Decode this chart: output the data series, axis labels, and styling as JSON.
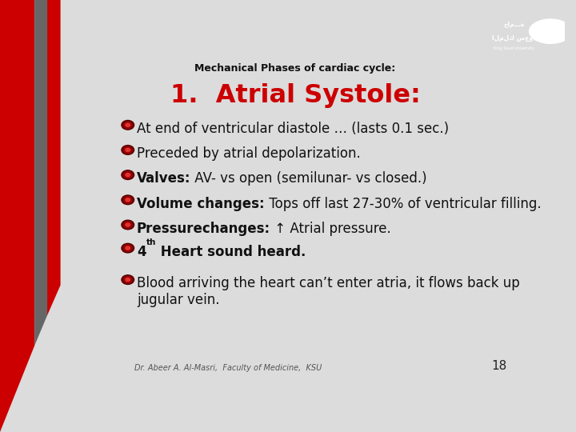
{
  "title_small": "Mechanical Phases of cardiac cycle:",
  "title_large": "1.  Atrial Systole:",
  "bullet_items": [
    {
      "bold_part": "",
      "normal_part": "At end of ventricular diastole … (lasts 0.1 sec.)"
    },
    {
      "bold_part": "",
      "normal_part": "Preceded by atrial depolarization."
    },
    {
      "bold_part": "Valves:",
      "normal_part": " AV- vs open (semilunar- vs closed.)"
    },
    {
      "bold_part": "Volume changes:",
      "normal_part": " Tops off last 27-30% of ventricular filling."
    },
    {
      "bold_part": "Pressurechanges:",
      "normal_part": " ↑ Atrial pressure."
    },
    {
      "bold_part": "4",
      "superscript": "th",
      "bold_part2": " Heart sound heard.",
      "normal_part": ""
    },
    {
      "bold_part": "",
      "normal_part": "Blood arriving the heart can’t enter atria, it flows back up\njugular vein."
    }
  ],
  "footer": "Dr. Abeer A. Al-Masri,  Faculty of Medicine,  KSU",
  "page_number": "18",
  "bg_color": "#dcdcdc",
  "title_large_color": "#cc0000",
  "title_small_color": "#111111",
  "text_color": "#111111",
  "bold_color": "#111111",
  "bar1_color": "#cc0000",
  "bar2_color": "#666666",
  "bar3_color": "#cc0000",
  "logo_bg": "#1a7abf",
  "bullet_outer": "#7a0000",
  "bullet_inner": "#cc2222"
}
